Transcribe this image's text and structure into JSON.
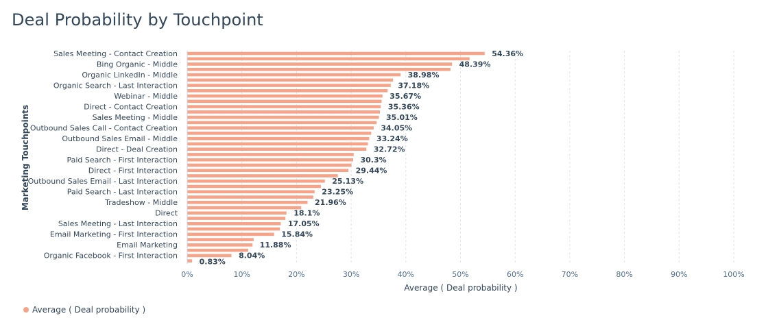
{
  "page": {
    "title": "Deal Probability by Touchpoint"
  },
  "legend": {
    "items": [
      {
        "label": "Average ( Deal probability )",
        "color": "#f5a48a"
      }
    ]
  },
  "chart_data": {
    "type": "bar",
    "orientation": "horizontal",
    "title": "Deal Probability by Touchpoint",
    "xlabel": "Average ( Deal probability )",
    "ylabel": "Marketing Touchpoints",
    "xlim": [
      0,
      100
    ],
    "xticks": [
      "0%",
      "10%",
      "20%",
      "30%",
      "40%",
      "50%",
      "60%",
      "70%",
      "80%",
      "90%",
      "100%"
    ],
    "grid": true,
    "legend_position": "bottom-left",
    "bar_color": "#f5a48a",
    "categories": [
      "Sales Meeting - Contact Creation",
      "",
      "Bing Organic - Middle",
      "",
      "Organic LinkedIn - Middle",
      "",
      "Organic Search - Last Interaction",
      "",
      "Webinar - Middle",
      "",
      "Direct - Contact Creation",
      "",
      "Sales Meeting - Middle",
      "",
      "Outbound Sales Call - Contact Creation",
      "",
      "Outbound Sales Email - Middle",
      "",
      "Direct - Deal Creation",
      "",
      "Paid Search - First Interaction",
      "",
      "Direct - First Interaction",
      "",
      "Outbound Sales Email - Last Interaction",
      "",
      "Paid Search - Last Interaction",
      "",
      "Tradeshow - Middle",
      "",
      "Direct",
      "",
      "Sales Meeting - Last Interaction",
      "",
      "Email Marketing - First Interaction",
      "",
      "Email Marketing",
      "",
      "Organic Facebook - First Interaction",
      ""
    ],
    "series": [
      {
        "name": "Average ( Deal probability )",
        "values": [
          54.36,
          51.6,
          48.39,
          48.1,
          38.98,
          37.6,
          37.18,
          36.6,
          35.67,
          35.5,
          35.36,
          35.2,
          35.01,
          34.6,
          34.05,
          33.6,
          33.24,
          33.0,
          32.72,
          30.4,
          30.3,
          30.0,
          29.44,
          27.5,
          25.13,
          24.4,
          23.25,
          23.0,
          21.96,
          20.8,
          18.1,
          17.9,
          17.05,
          16.9,
          15.84,
          12.1,
          11.88,
          11.1,
          8.04,
          0.83
        ]
      }
    ],
    "data_labels": [
      "54.36%",
      "",
      "48.39%",
      "",
      "38.98%",
      "",
      "37.18%",
      "",
      "35.67%",
      "",
      "35.36%",
      "",
      "35.01%",
      "",
      "34.05%",
      "",
      "33.24%",
      "",
      "32.72%",
      "",
      "30.3%",
      "",
      "29.44%",
      "",
      "25.13%",
      "",
      "23.25%",
      "",
      "21.96%",
      "",
      "18.1%",
      "",
      "17.05%",
      "",
      "15.84%",
      "",
      "11.88%",
      "",
      "8.04%",
      "0.83%"
    ]
  }
}
